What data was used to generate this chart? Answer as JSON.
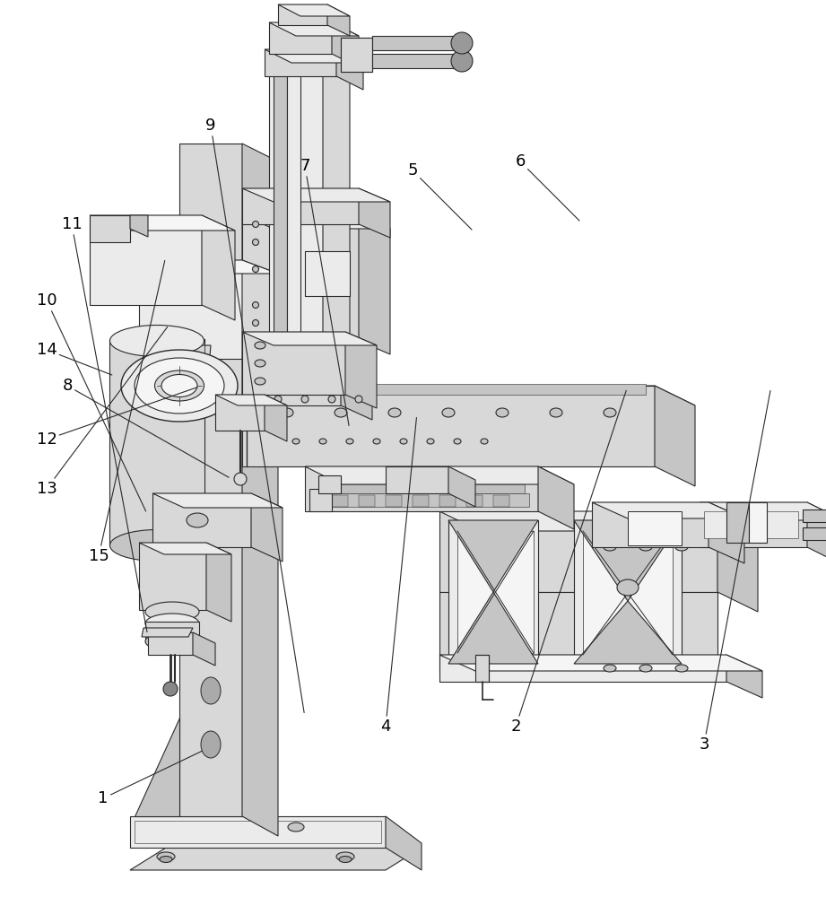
{
  "background_color": "#ffffff",
  "line_color": "#2a2a2a",
  "fig_width": 9.21,
  "fig_height": 10.0,
  "label_fontsize": 13,
  "label_color": "#000000",
  "face_light": "#ebebeb",
  "face_mid": "#d8d8d8",
  "face_dark": "#c5c5c5",
  "face_darkest": "#b8b8b8",
  "face_white": "#f5f5f5"
}
